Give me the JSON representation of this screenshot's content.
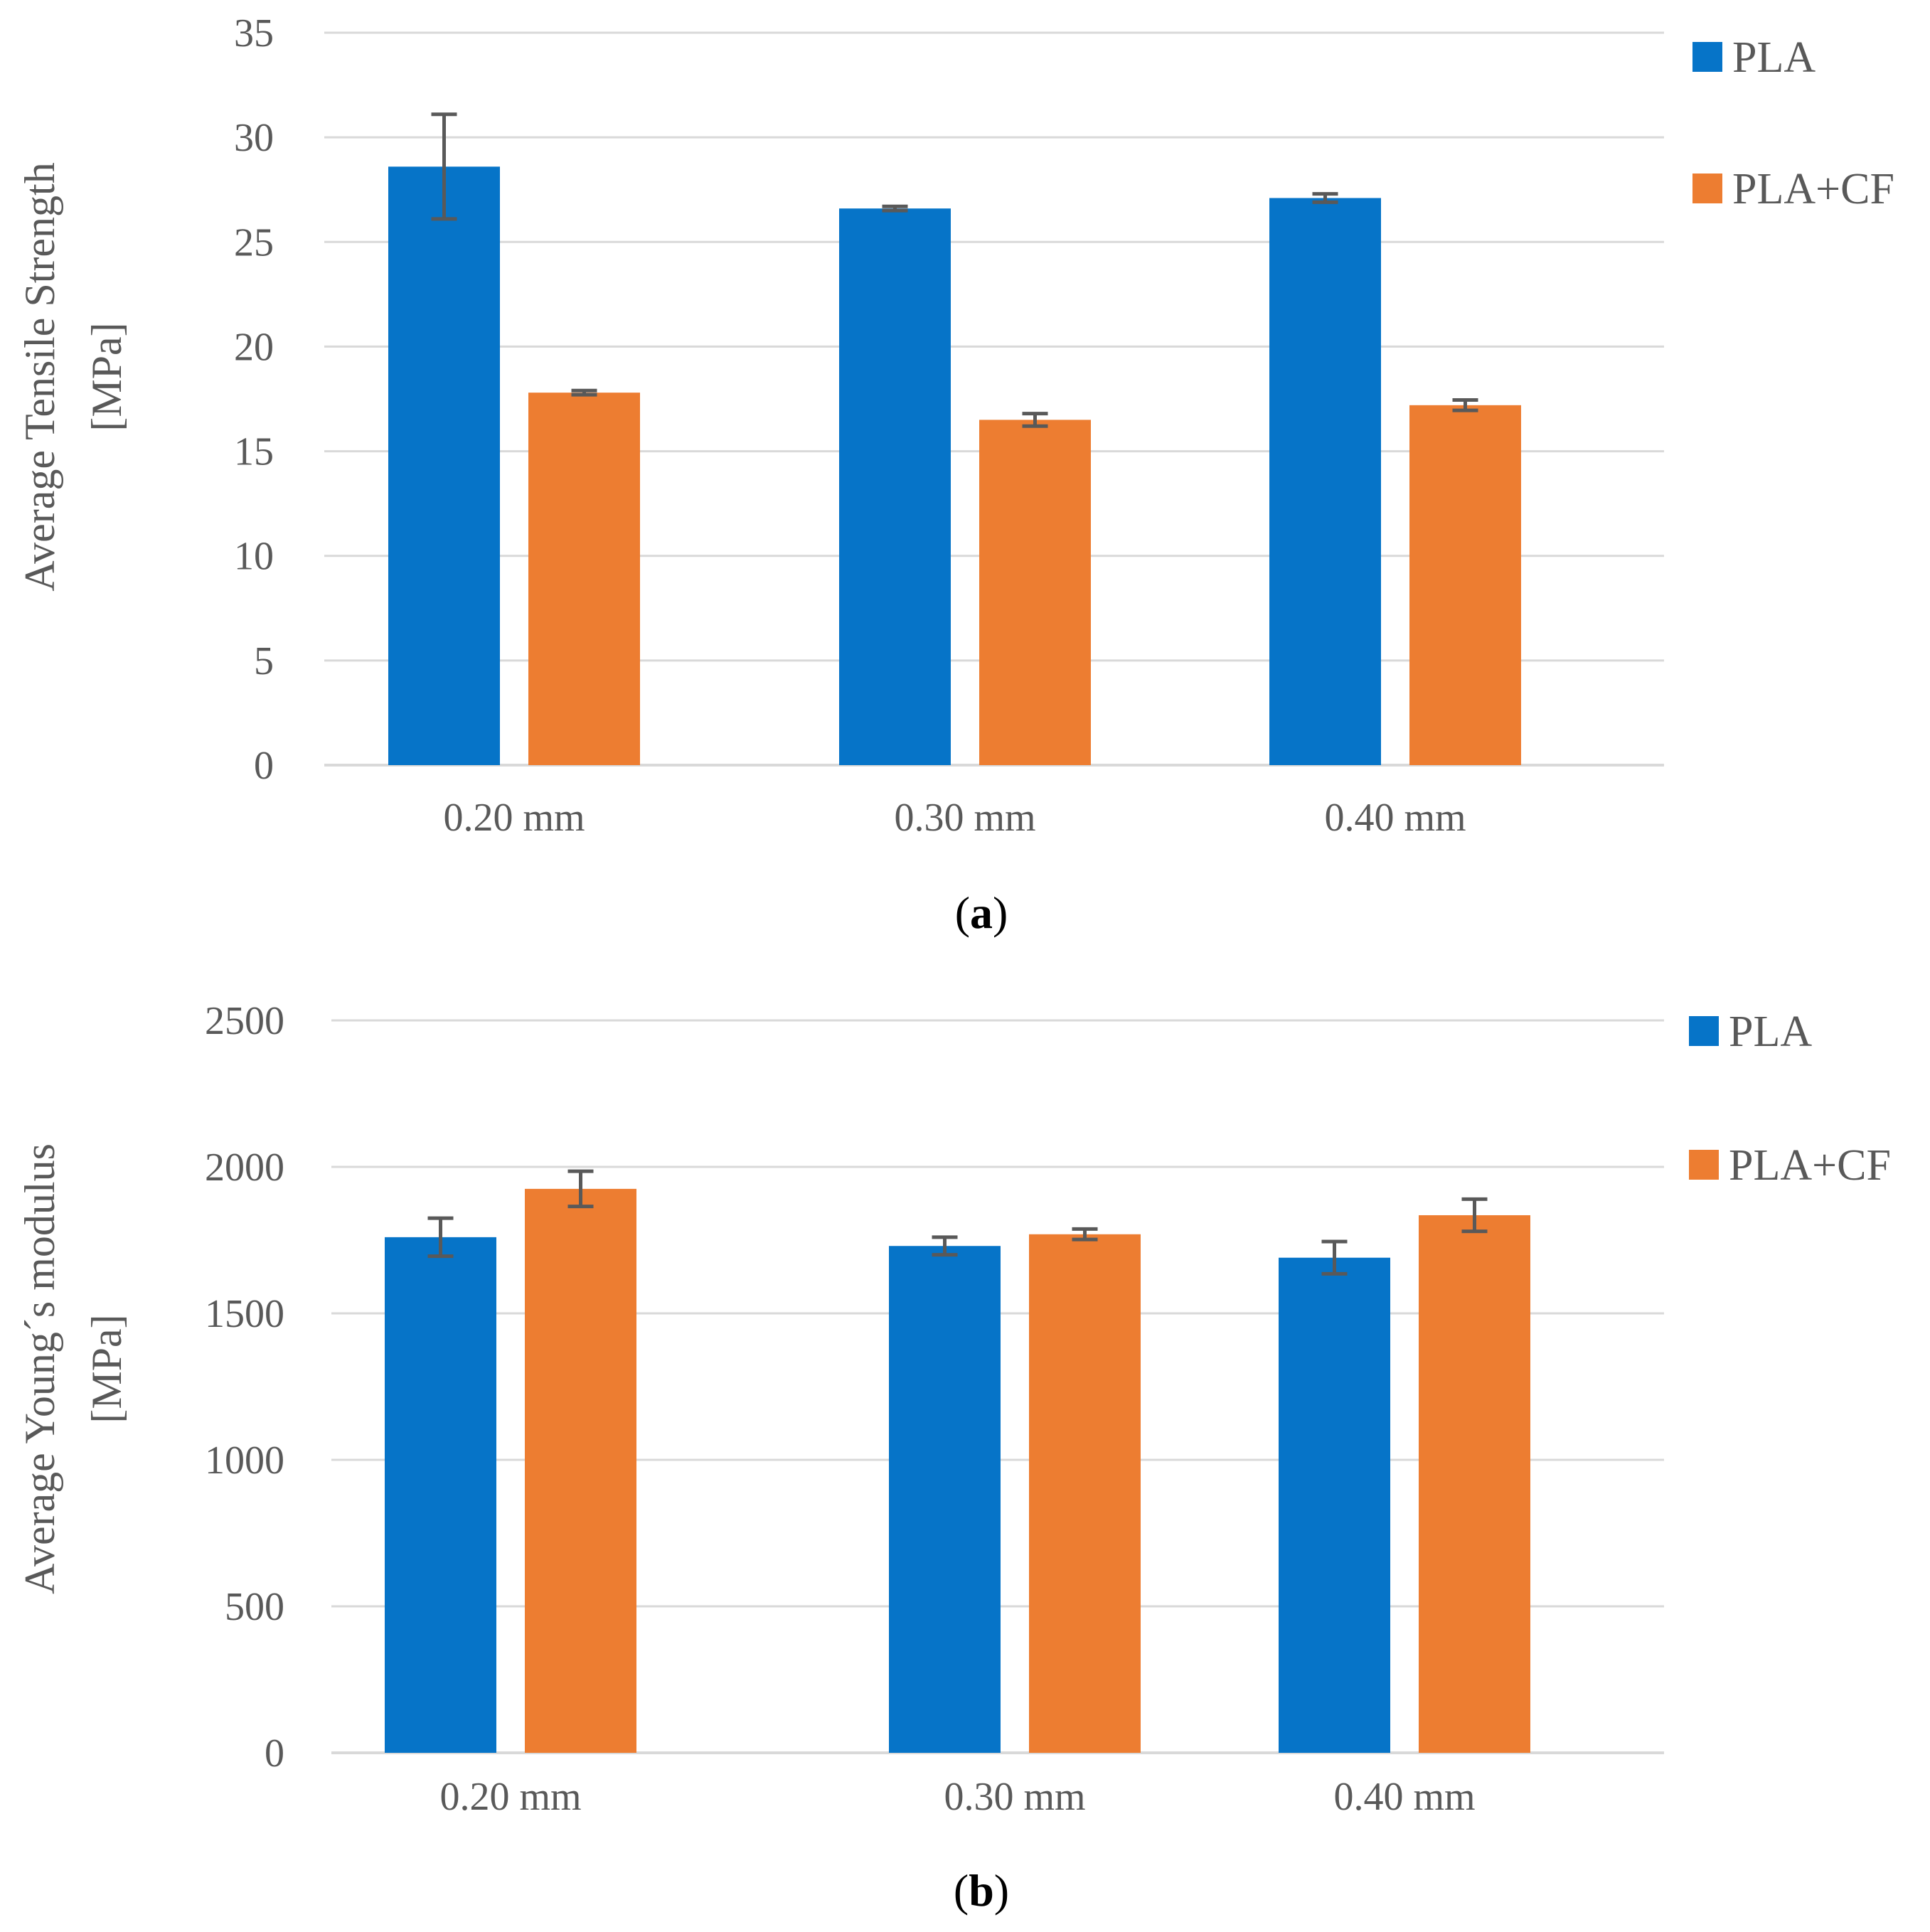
{
  "colors": {
    "PLA": "#0674C8",
    "PLA+CF": "#ED7D31",
    "grid": "#D9D9D9",
    "errorbar": "#595959"
  },
  "chart_data": [
    {
      "type": "bar",
      "panel": "(a)",
      "caption_parts": [
        "(",
        "a",
        ")"
      ],
      "categories": [
        "0.20 mm",
        "0.30 mm",
        "0.40 mm"
      ],
      "ylabel_lines": [
        "Average Tensile Strength",
        "[MPa]"
      ],
      "ylim": [
        0,
        35
      ],
      "yticks": [
        0,
        5,
        10,
        15,
        20,
        25,
        30,
        35
      ],
      "grid": true,
      "legend_position": "right",
      "series": [
        {
          "name": "PLA",
          "values": [
            28.6,
            26.6,
            27.1
          ],
          "errors": [
            2.5,
            0.1,
            0.2
          ]
        },
        {
          "name": "PLA+CF",
          "values": [
            17.8,
            16.5,
            17.2
          ],
          "errors": [
            0.1,
            0.3,
            0.25
          ]
        }
      ]
    },
    {
      "type": "bar",
      "panel": "(b)",
      "caption_parts": [
        "(",
        "b",
        ")"
      ],
      "categories": [
        "0.20 mm",
        "0.30 mm",
        "0.40 mm"
      ],
      "ylabel_lines": [
        "Average Young´s modulus",
        "[MPa]"
      ],
      "ylim": [
        0,
        2500
      ],
      "yticks": [
        0,
        500,
        1000,
        1500,
        2000,
        2500
      ],
      "grid": true,
      "legend_position": "right",
      "series": [
        {
          "name": "PLA",
          "values": [
            1760,
            1730,
            1690
          ],
          "errors": [
            65,
            30,
            55
          ]
        },
        {
          "name": "PLA+CF",
          "values": [
            1925,
            1770,
            1835
          ],
          "errors": [
            60,
            18,
            55
          ]
        }
      ]
    }
  ]
}
